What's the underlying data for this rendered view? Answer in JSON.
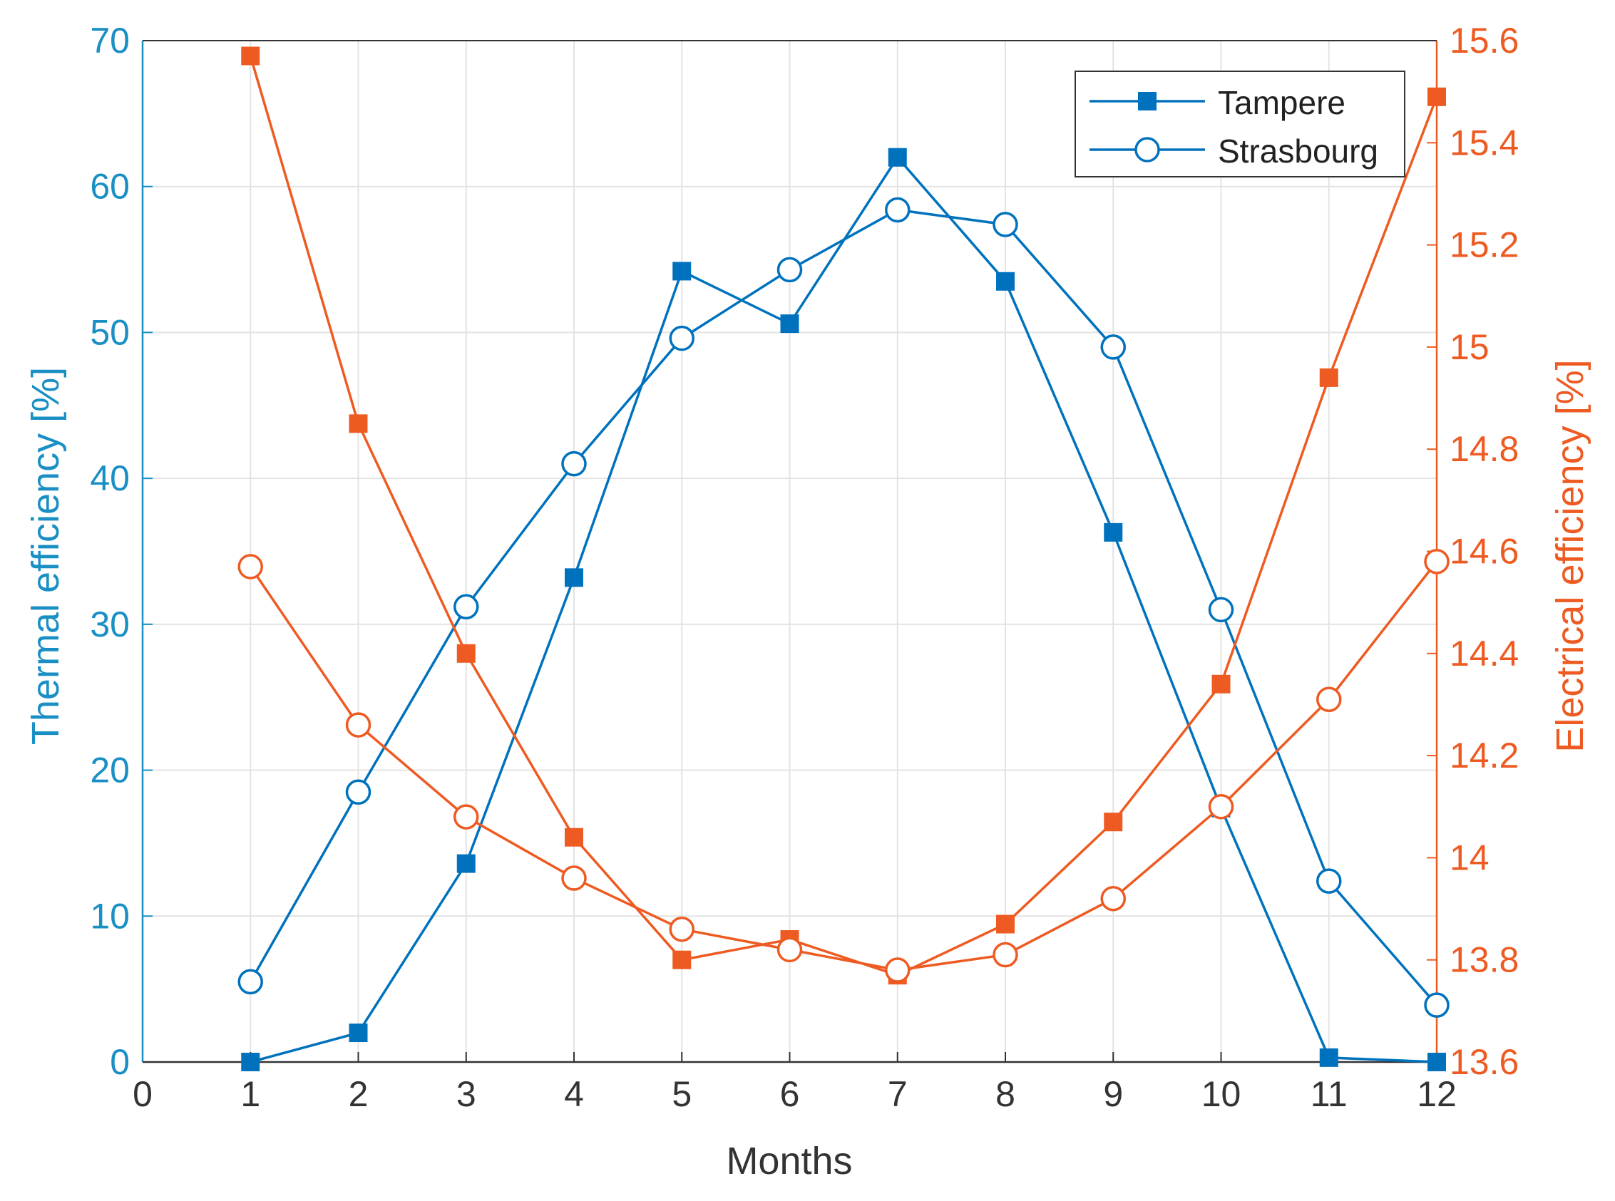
{
  "chart_data": {
    "type": "line",
    "title": "",
    "xlabel": "Months",
    "ylabel_left": "Thermal efficiency [%]",
    "ylabel_right": "Electrical efficiency [%]",
    "xlim": [
      0,
      12
    ],
    "ylim_left": [
      0,
      70
    ],
    "ylim_right": [
      13.6,
      15.6
    ],
    "x_ticks": [
      "0",
      "1",
      "2",
      "3",
      "4",
      "5",
      "6",
      "7",
      "8",
      "9",
      "10",
      "11",
      "12"
    ],
    "y_left_ticks": [
      "0",
      "10",
      "20",
      "30",
      "40",
      "50",
      "60",
      "70"
    ],
    "y_right_ticks": [
      "13.6",
      "13.8",
      "14",
      "14.2",
      "14.4",
      "14.6",
      "14.8",
      "15",
      "15.2",
      "15.4",
      "15.6"
    ],
    "grid": true,
    "legend_position": "top-right",
    "x": [
      1,
      2,
      3,
      4,
      5,
      6,
      7,
      8,
      9,
      10,
      11,
      12
    ],
    "series": [
      {
        "name": "Tampere",
        "axis": "left",
        "marker": "square",
        "color": "#0072bd",
        "values": [
          0,
          2,
          13.6,
          33.2,
          54.2,
          50.6,
          62,
          53.5,
          36.3,
          17.4,
          0.3,
          0
        ]
      },
      {
        "name": "Strasbourg",
        "axis": "left",
        "marker": "circle",
        "color": "#0072bd",
        "values": [
          5.5,
          18.5,
          31.2,
          41,
          49.6,
          54.3,
          58.4,
          57.4,
          49,
          31,
          12.4,
          3.9
        ]
      },
      {
        "name": "Tampere",
        "axis": "right",
        "marker": "square",
        "color": "#ee5b22",
        "values": [
          15.57,
          14.85,
          14.4,
          14.04,
          13.8,
          13.84,
          13.77,
          13.87,
          14.07,
          14.34,
          14.94,
          15.49
        ]
      },
      {
        "name": "Strasbourg",
        "axis": "right",
        "marker": "circle",
        "color": "#ee5b22",
        "values": [
          14.57,
          14.26,
          14.08,
          13.96,
          13.86,
          13.82,
          13.78,
          13.81,
          13.92,
          14.1,
          14.31,
          14.58
        ]
      }
    ],
    "legend": [
      {
        "label": "Tampere",
        "marker": "square"
      },
      {
        "label": "Strasbourg",
        "marker": "circle"
      }
    ],
    "colors": {
      "thermal": "#0072bd",
      "thermal_text": "#1a8fc4",
      "electrical": "#ee5b22",
      "grid": "#e3e3e3",
      "axis_x": "#333333"
    }
  }
}
